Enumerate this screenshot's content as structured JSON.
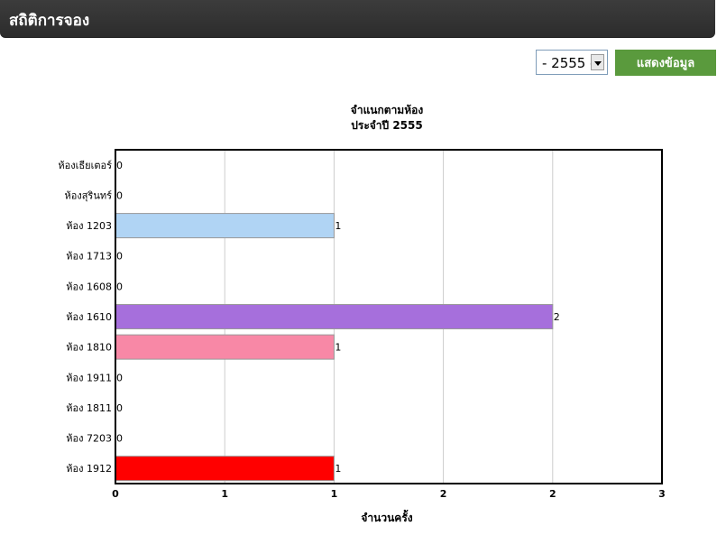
{
  "header": {
    "title": "สถิติการจอง"
  },
  "controls": {
    "year_value": "- 2555 -",
    "show_button": "แสดงข้อมูล"
  },
  "chart_data": {
    "type": "bar",
    "orientation": "horizontal",
    "title": "จำแนกตามห้อง",
    "subtitle": "ประจำปี 2555",
    "xlabel": "จำนวนครั้ง",
    "ylabel": "",
    "xlim": [
      0,
      2.5
    ],
    "x_tick_labels": [
      "0",
      "1",
      "1",
      "2",
      "2",
      "3"
    ],
    "grid": true,
    "legend": "none",
    "categories": [
      "ห้องเธียเตอร์",
      "ห้องสุรินทร์",
      "ห้อง 1203",
      "ห้อง 1713",
      "ห้อง 1608",
      "ห้อง 1610",
      "ห้อง 1810",
      "ห้อง 1911",
      "ห้อง 1811",
      "ห้อง 7203",
      "ห้อง 1912"
    ],
    "values": [
      0,
      0,
      1,
      0,
      0,
      2,
      1,
      0,
      0,
      0,
      1
    ],
    "data_labels": [
      "0",
      "0",
      "1",
      "0",
      "0",
      "2",
      "1",
      "0",
      "0",
      "0",
      "1"
    ],
    "colors": [
      "#cccccc",
      "#cccccc",
      "#b0d4f4",
      "#cccccc",
      "#cccccc",
      "#a66fdc",
      "#f888a6",
      "#cccccc",
      "#cccccc",
      "#cccccc",
      "#ff0000"
    ]
  }
}
